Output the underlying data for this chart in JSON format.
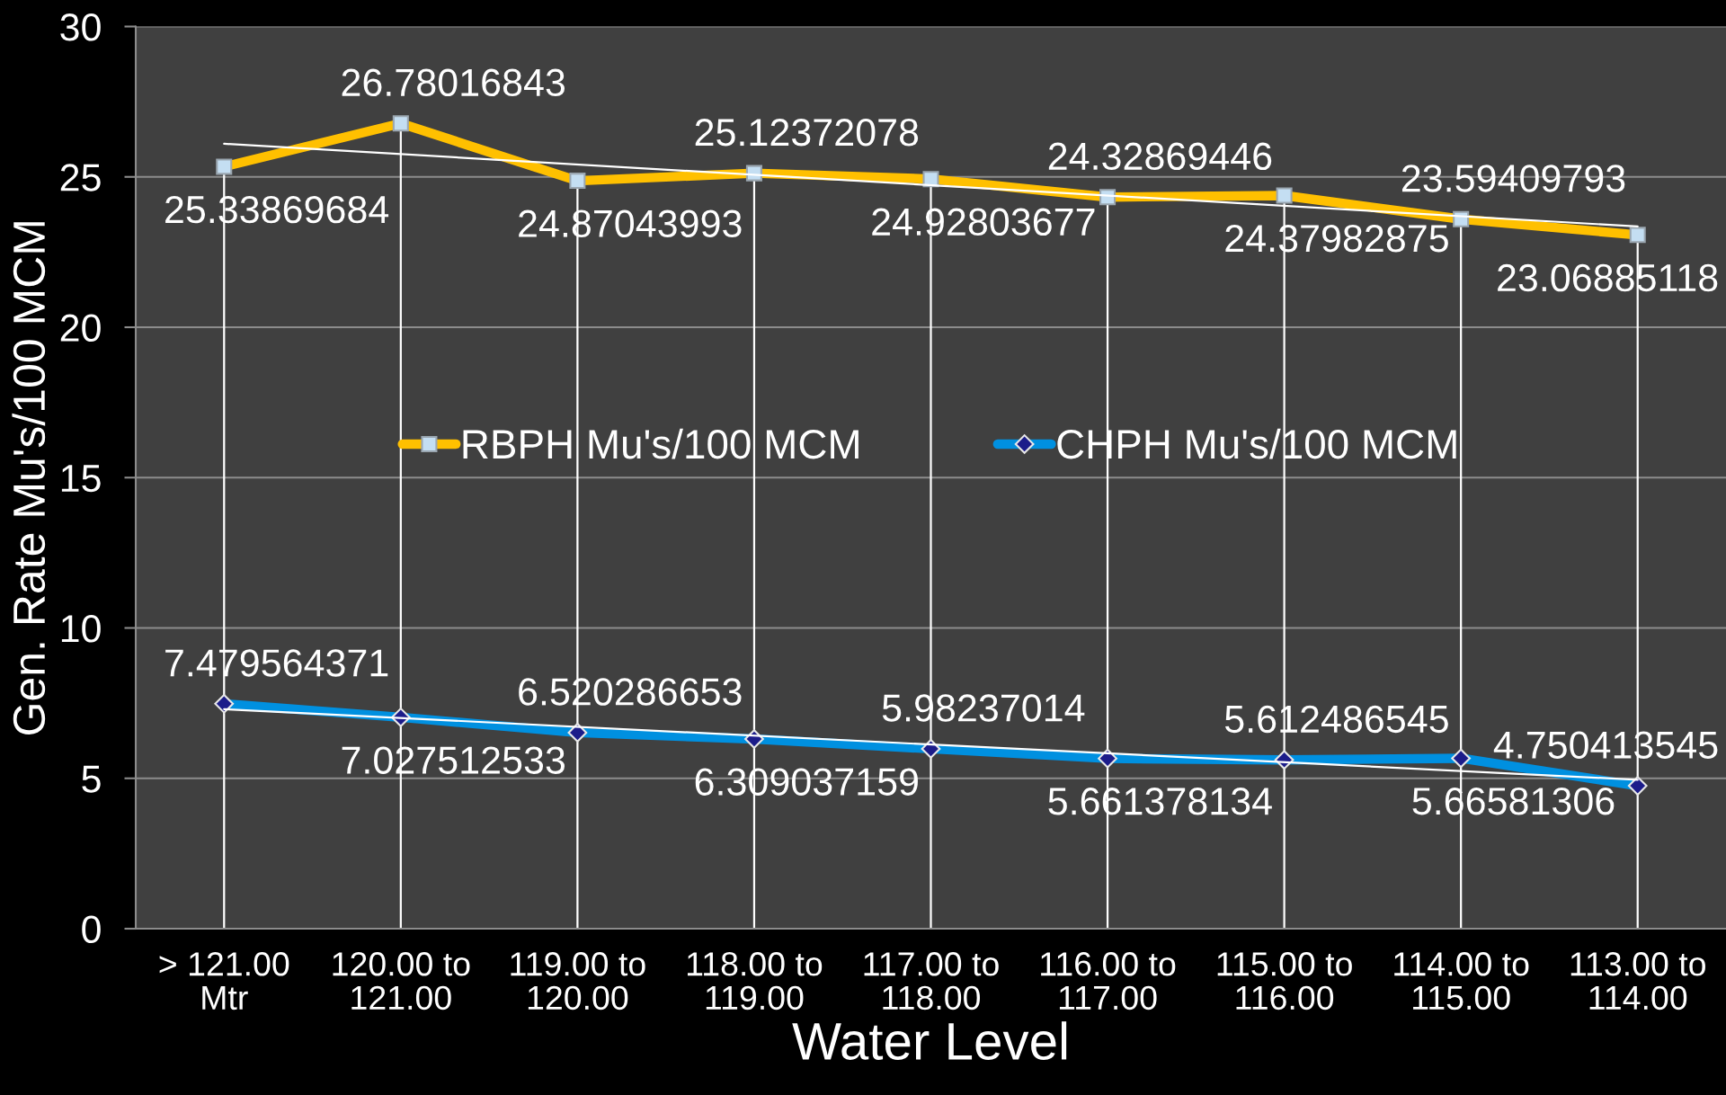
{
  "chart_data": {
    "type": "line",
    "xlabel": "Water Level",
    "ylabel": "Gen. Rate Mu's/100 MCM",
    "categories": [
      "> 121.00\nMtr",
      "120.00 to\n121.00",
      "119.00 to\n120.00",
      "118.00 to\n119.00",
      "117.00 to\n118.00",
      "116.00 to\n117.00",
      "115.00 to\n116.00",
      "114.00 to\n115.00",
      "113.00 to\n114.00"
    ],
    "series": [
      {
        "name": "RBPH Mu's/100 MCM",
        "color": "#ffc000",
        "marker": "square",
        "values": [
          25.33869684,
          26.78016843,
          24.87043993,
          25.12372078,
          24.92803677,
          24.32869446,
          24.37982875,
          23.59409793,
          23.06885118
        ],
        "value_labels": [
          "25.33869684",
          "26.78016843",
          "24.87043993",
          "25.12372078",
          "24.92803677",
          "24.32869446",
          "24.37982875",
          "23.59409793",
          "23.06885118"
        ]
      },
      {
        "name": "CHPH Mu's/100 MCM",
        "color": "#0090e0",
        "marker": "diamond",
        "values": [
          7.479564371,
          7.027512533,
          6.520286653,
          6.309037159,
          5.98237014,
          5.661378134,
          5.612486545,
          5.66581306,
          4.750413545
        ],
        "value_labels": [
          "7.479564371",
          "7.027512533",
          "6.520286653",
          "6.309037159",
          "5.98237014",
          "5.661378134",
          "5.612486545",
          "5.66581306",
          "4.750413545"
        ]
      },
      {
        "type": "line",
        "color": "#ffffff",
        "marker": "none",
        "x": [
          "> 121.00\nMtr",
          "113.00 to\n114.00"
        ],
        "values": [
          26.1,
          23.35
        ]
      },
      {
        "type": "line",
        "color": "#ffffff",
        "marker": "none",
        "x": [
          "> 121.00\nMtr",
          "113.00 to\n114.00"
        ],
        "values": [
          7.3,
          4.95
        ]
      }
    ],
    "ylim": [
      0,
      30
    ],
    "yticks": [
      0,
      5,
      10,
      15,
      20,
      25,
      30
    ],
    "grid": true,
    "legend": "center"
  }
}
